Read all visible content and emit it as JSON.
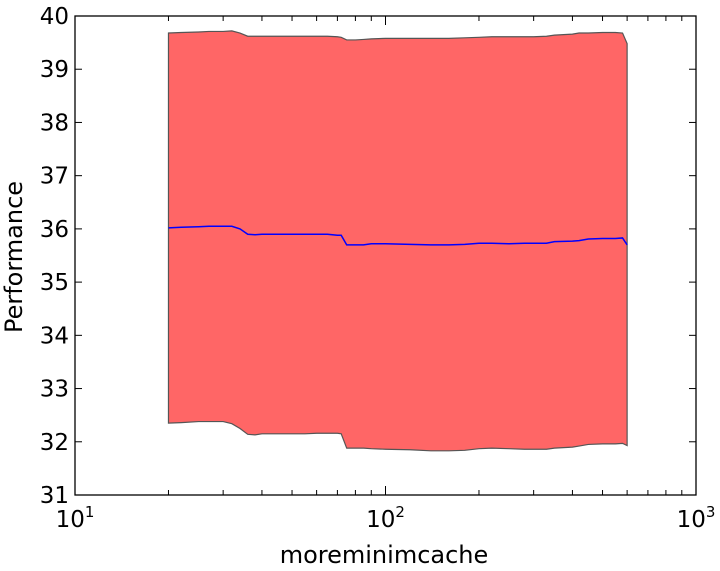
{
  "chart_data": {
    "type": "line",
    "title": "",
    "xlabel": "moreminimcache",
    "ylabel": "Performance",
    "xscale": "log",
    "xlim": [
      10,
      1000
    ],
    "ylim": [
      31,
      40
    ],
    "grid": false,
    "legend": "none",
    "colors": {
      "fill": "#ff6666",
      "fill_edge": "#555555",
      "line": "#0000ff",
      "axes": "#000000"
    },
    "xticks": [
      {
        "value": 10,
        "base": "10",
        "exp": "1"
      },
      {
        "value": 100,
        "base": "10",
        "exp": "2"
      },
      {
        "value": 1000,
        "base": "10",
        "exp": "3"
      }
    ],
    "yticks": [
      "31",
      "32",
      "33",
      "34",
      "35",
      "36",
      "37",
      "38",
      "39",
      "40"
    ],
    "series": [
      {
        "type": "line",
        "x": [
          20,
          22,
          25,
          27,
          30,
          32,
          34,
          36,
          38,
          40,
          45,
          50,
          55,
          60,
          65,
          70,
          72,
          75,
          80,
          85,
          90,
          100,
          120,
          140,
          160,
          180,
          200,
          220,
          250,
          280,
          300,
          330,
          350,
          400,
          420,
          450,
          500,
          550,
          580,
          600
        ],
        "y": [
          36.02,
          36.03,
          36.04,
          36.05,
          36.05,
          36.05,
          36.0,
          35.9,
          35.89,
          35.9,
          35.9,
          35.9,
          35.9,
          35.9,
          35.9,
          35.88,
          35.88,
          35.7,
          35.7,
          35.7,
          35.72,
          35.72,
          35.71,
          35.7,
          35.7,
          35.71,
          35.73,
          35.73,
          35.72,
          35.73,
          35.73,
          35.73,
          35.76,
          35.77,
          35.78,
          35.81,
          35.82,
          35.82,
          35.83,
          35.7
        ]
      },
      {
        "type": "band",
        "x": [
          20,
          22,
          25,
          27,
          30,
          32,
          34,
          36,
          38,
          40,
          45,
          50,
          55,
          60,
          65,
          70,
          72,
          75,
          80,
          85,
          90,
          100,
          120,
          140,
          160,
          180,
          200,
          220,
          250,
          280,
          300,
          330,
          350,
          400,
          420,
          450,
          500,
          550,
          580,
          600
        ],
        "lower": [
          32.35,
          32.36,
          32.38,
          32.38,
          32.38,
          32.34,
          32.25,
          32.14,
          32.13,
          32.15,
          32.15,
          32.15,
          32.15,
          32.16,
          32.16,
          32.16,
          32.15,
          31.88,
          31.88,
          31.88,
          31.87,
          31.86,
          31.85,
          31.83,
          31.83,
          31.84,
          31.87,
          31.88,
          31.87,
          31.86,
          31.86,
          31.86,
          31.88,
          31.9,
          31.92,
          31.95,
          31.96,
          31.96,
          31.97,
          31.93
        ],
        "upper": [
          39.68,
          39.69,
          39.7,
          39.71,
          39.71,
          39.72,
          39.68,
          39.62,
          39.62,
          39.62,
          39.62,
          39.62,
          39.62,
          39.62,
          39.62,
          39.61,
          39.6,
          39.55,
          39.55,
          39.56,
          39.57,
          39.58,
          39.58,
          39.58,
          39.58,
          39.59,
          39.6,
          39.61,
          39.61,
          39.61,
          39.61,
          39.62,
          39.64,
          39.66,
          39.68,
          39.68,
          39.69,
          39.69,
          39.68,
          39.48
        ]
      }
    ]
  }
}
